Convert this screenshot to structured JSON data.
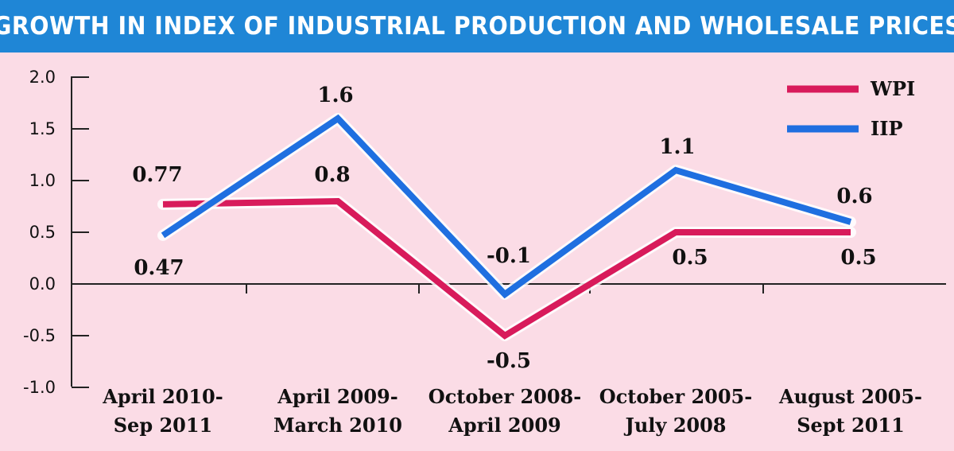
{
  "title": "GROWTH IN INDEX OF INDUSTRIAL PRODUCTION AND WHOLESALE PRICES",
  "chart_data": {
    "type": "line",
    "title": "GROWTH IN INDEX OF INDUSTRIAL PRODUCTION AND WHOLESALE PRICES",
    "categories": [
      [
        "April 2010-",
        "Sep 2011"
      ],
      [
        "April 2009-",
        "March 2010"
      ],
      [
        "October 2008-",
        "April 2009"
      ],
      [
        "October 2005-",
        "July 2008"
      ],
      [
        "August 2005-",
        "Sept 2011"
      ]
    ],
    "ylim": [
      -1.0,
      2.0
    ],
    "yticks": [
      "2.0",
      "1.5",
      "1.0",
      "0.5",
      "0.0",
      "-0.5",
      "-1.0"
    ],
    "legend_position": "top-right",
    "series": [
      {
        "name": "WPI",
        "color": "#d81b5b",
        "values": [
          0.77,
          0.8,
          -0.5,
          0.5,
          0.5
        ],
        "labels": [
          "0.77",
          "0.8",
          "-0.5",
          "0.5",
          "0.5"
        ]
      },
      {
        "name": "IIP",
        "color": "#1f6fe0",
        "values": [
          0.47,
          1.6,
          -0.1,
          1.1,
          0.6
        ],
        "labels": [
          "0.47",
          "1.6",
          "-0.1",
          "1.1",
          "0.6"
        ]
      }
    ]
  }
}
